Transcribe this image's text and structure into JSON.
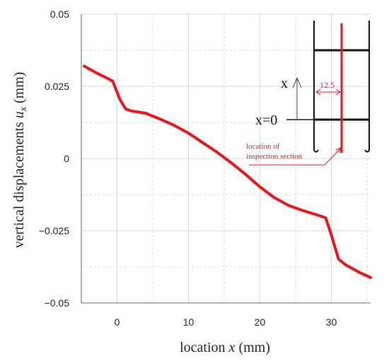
{
  "chart_data": {
    "type": "line",
    "xlabel": {
      "prefix": "location ",
      "var": "x",
      "suffix": " (mm)"
    },
    "ylabel": {
      "prefix": "vertical displacements ",
      "var": "u",
      "sub": "x",
      "suffix": " (mm)"
    },
    "xlim": [
      -5,
      35.5
    ],
    "ylim": [
      -0.05,
      0.05
    ],
    "x_ticks": [
      0,
      10,
      20,
      30
    ],
    "x_tick_labels": [
      "0",
      "10",
      "20",
      "30"
    ],
    "y_ticks": [
      -0.05,
      -0.025,
      0,
      0.025,
      0.05
    ],
    "y_tick_labels": [
      "−0.05",
      "−0.025",
      "0",
      "0.025",
      "0.05"
    ],
    "grid": true,
    "series": [
      {
        "color": "#e8161c",
        "x": [
          -4.6,
          -3,
          -1.5,
          -0.6,
          0.4,
          1.2,
          2,
          4,
          6,
          8,
          10,
          12,
          14,
          16,
          18,
          20,
          22,
          24,
          26,
          28,
          29.2,
          30,
          31,
          32,
          34,
          35.5
        ],
        "y": [
          0.032,
          0.0298,
          0.028,
          0.0268,
          0.0205,
          0.0172,
          0.0165,
          0.0157,
          0.0137,
          0.0115,
          0.0088,
          0.0055,
          0.0022,
          -0.0015,
          -0.0055,
          -0.0098,
          -0.0135,
          -0.0162,
          -0.018,
          -0.0195,
          -0.0205,
          -0.0265,
          -0.0348,
          -0.0368,
          -0.0395,
          -0.0412
        ]
      }
    ],
    "inset": {
      "x_label": "x",
      "x0_label": "x=0",
      "dimension": "12.5",
      "annotation_line1": "location of",
      "annotation_line2": "inspection section"
    }
  },
  "colors": {
    "series": "#e8161c",
    "grid": "#d9d9d9",
    "axis": "#666666",
    "inset_line": "#111111"
  }
}
